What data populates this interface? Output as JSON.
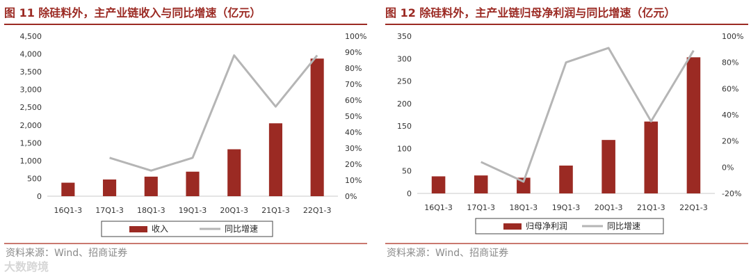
{
  "left": {
    "title": "图 11  除硅料外，主产业链收入与同比增速（亿元）",
    "source": "资料来源：Wind、招商证券"
  },
  "right": {
    "title": "图 12  除硅料外，主产业链归母净利润与同比增速（亿元）",
    "source": "资料来源：Wind、招商证券"
  },
  "watermark": "大数跨境",
  "colors": {
    "bar": "#9B2A23",
    "line": "#B5B5B5",
    "accent": "#9B2A23"
  },
  "chart_data": [
    {
      "type": "bar",
      "categories": [
        "16Q1-3",
        "17Q1-3",
        "18Q1-3",
        "19Q1-3",
        "20Q1-3",
        "21Q1-3",
        "22Q1-3"
      ],
      "series": [
        {
          "name": "收入",
          "type": "bar",
          "axis": "left",
          "values": [
            380,
            470,
            550,
            690,
            1320,
            2050,
            3870
          ]
        },
        {
          "name": "同比增速",
          "type": "line",
          "axis": "right",
          "values": [
            null,
            24,
            16,
            24,
            88,
            56,
            88
          ]
        }
      ],
      "y_left": {
        "ticks": [
          "0",
          "500",
          "1,000",
          "1,500",
          "2,000",
          "2,500",
          "3,000",
          "3,500",
          "4,000",
          "4,500"
        ],
        "ylim": [
          0,
          4500
        ]
      },
      "y_right": {
        "ticks": [
          "0%",
          "10%",
          "20%",
          "30%",
          "40%",
          "50%",
          "60%",
          "70%",
          "80%",
          "90%",
          "100%"
        ],
        "ylim": [
          0,
          100
        ]
      },
      "legend": "bottom"
    },
    {
      "type": "bar",
      "categories": [
        "16Q1-3",
        "17Q1-3",
        "18Q1-3",
        "19Q1-3",
        "20Q1-3",
        "21Q1-3",
        "22Q1-3"
      ],
      "series": [
        {
          "name": "归母净利润",
          "type": "bar",
          "axis": "left",
          "values": [
            38,
            40,
            35,
            62,
            119,
            160,
            303
          ]
        },
        {
          "name": "同比增速",
          "type": "line",
          "axis": "right",
          "values": [
            null,
            4,
            -11,
            80,
            91,
            35,
            89
          ]
        }
      ],
      "y_left": {
        "ticks": [
          "0",
          "50",
          "100",
          "150",
          "200",
          "250",
          "300",
          "350"
        ],
        "ylim": [
          0,
          350
        ]
      },
      "y_right": {
        "ticks": [
          "-20%",
          "0%",
          "20%",
          "40%",
          "60%",
          "80%",
          "100%"
        ],
        "ylim": [
          -20,
          100
        ]
      },
      "legend": "bottom"
    }
  ]
}
